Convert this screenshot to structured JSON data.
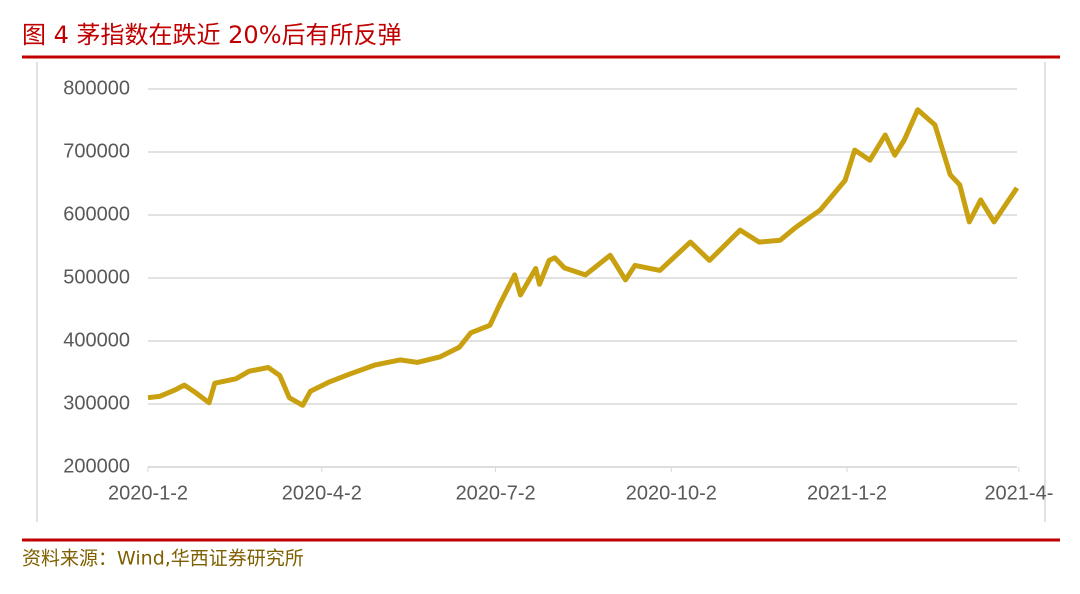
{
  "chart_data": {
    "type": "line",
    "title": "图 4   茅指数在跌近 20%后有所反弹",
    "source": "资料来源：Wind,华西证券研究所",
    "x": [
      "2020-01-02",
      "2020-01-08",
      "2020-01-16",
      "2020-01-21",
      "2020-01-27",
      "2020-02-03",
      "2020-02-06",
      "2020-02-17",
      "2020-02-24",
      "2020-03-05",
      "2020-03-11",
      "2020-03-16",
      "2020-03-23",
      "2020-03-27",
      "2020-04-06",
      "2020-04-17",
      "2020-04-30",
      "2020-05-13",
      "2020-05-22",
      "2020-06-03",
      "2020-06-13",
      "2020-06-19",
      "2020-06-29",
      "2020-07-04",
      "2020-07-12",
      "2020-07-15",
      "2020-07-23",
      "2020-07-25",
      "2020-07-30",
      "2020-08-02",
      "2020-08-07",
      "2020-08-18",
      "2020-08-31",
      "2020-09-08",
      "2020-09-13",
      "2020-09-26",
      "2020-10-12",
      "2020-10-22",
      "2020-11-07",
      "2020-11-17",
      "2020-11-28",
      "2020-12-06",
      "2020-12-19",
      "2021-01-01",
      "2021-01-06",
      "2021-01-14",
      "2021-01-22",
      "2021-01-27",
      "2021-02-01",
      "2021-02-08",
      "2021-02-17",
      "2021-02-25",
      "2021-03-02",
      "2021-03-07",
      "2021-03-13",
      "2021-03-20",
      "2021-03-26",
      "2021-04-01"
    ],
    "values": [
      310000,
      312000,
      322000,
      330000,
      318000,
      302000,
      333000,
      340000,
      352000,
      358000,
      345000,
      310000,
      298000,
      320000,
      335000,
      348000,
      362000,
      370000,
      366000,
      375000,
      390000,
      413000,
      425000,
      457000,
      505000,
      473000,
      515000,
      490000,
      528000,
      532000,
      516000,
      505000,
      536000,
      497000,
      520000,
      512000,
      557000,
      528000,
      576000,
      557000,
      560000,
      580000,
      608000,
      655000,
      703000,
      687000,
      727000,
      695000,
      719000,
      767000,
      743000,
      664000,
      648000,
      589000,
      624000,
      589000,
      616000,
      643000
    ],
    "color": "#c9a010",
    "xlim": [
      "2020-01-02",
      "2021-04-01"
    ],
    "xticks": [
      {
        "value": "2020-01-02",
        "label": "2020-1-2"
      },
      {
        "value": "2020-04-02",
        "label": "2020-4-2"
      },
      {
        "value": "2020-07-02",
        "label": "2020-7-2"
      },
      {
        "value": "2020-10-02",
        "label": "2020-10-2"
      },
      {
        "value": "2021-01-02",
        "label": "2021-1-2"
      },
      {
        "value": "2021-04-02",
        "label": "2021-4-"
      }
    ],
    "ylim": [
      200000,
      800000
    ],
    "yticks": [
      200000,
      300000,
      400000,
      500000,
      600000,
      700000,
      800000
    ],
    "grid": true
  }
}
